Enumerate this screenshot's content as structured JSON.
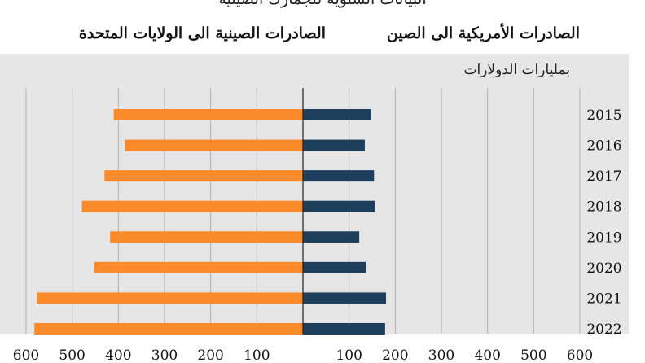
{
  "chart_data": {
    "type": "bar",
    "subtitle": "البيانات السنوية للجمارك الصينية",
    "unit_label": "بمليارات الدولارات",
    "series": [
      {
        "name": "الصادرات الأمريكية الى الصين",
        "side": "right",
        "color": "#1d3f5c",
        "values": [
          148,
          134,
          154,
          156,
          122,
          136,
          180,
          178
        ]
      },
      {
        "name": "الصادرات الصينية الى الولايات المتحدة",
        "side": "left",
        "color": "#fb8a2c",
        "values": [
          410,
          386,
          430,
          479,
          418,
          452,
          577,
          582
        ]
      }
    ],
    "categories": [
      "2015",
      "2016",
      "2017",
      "2018",
      "2019",
      "2020",
      "2021",
      "2022"
    ],
    "x_ticks_left": [
      "600",
      "500",
      "400",
      "300",
      "200",
      "100"
    ],
    "x_ticks_right": [
      "100",
      "200",
      "300",
      "400",
      "500",
      "600"
    ],
    "xlim": [
      0,
      600
    ],
    "grid": true
  }
}
